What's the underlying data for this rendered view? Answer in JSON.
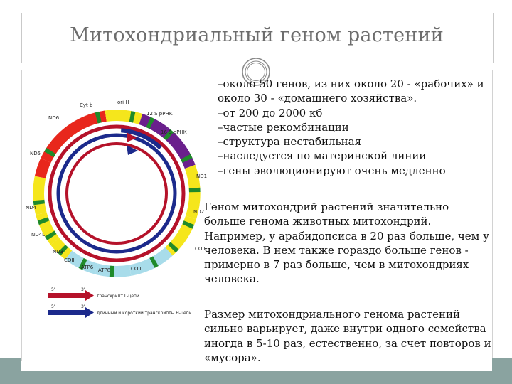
{
  "slide": {
    "title": "Митохондриальный геном растений",
    "bullets": [
      "–около 50 генов, из них около 20 - «рабочих» и",
      "около 30 - «домашнего хозяйства».",
      "–от 200 до 2000 кб",
      "–частые рекомбинации",
      "–структура нестабильная",
      "–наследуется по материнской линии",
      "–гены эволюционируют очень медленно"
    ],
    "paragraph1": [
      "Геном митохондрий растений значительно",
      "больше генома животных митохондрий.",
      "Например, у арабидопсиса в 20 раз больше, чем у",
      "человека. В нем также гораздо больше генов -",
      "примерно в 7 раз больше, чем в митохондриях",
      "человека."
    ],
    "paragraph2": [
      "Размер митохондриального генома растений",
      "сильно варьирует, даже внутри одного семейства",
      "иногда в 5-10 раз, естественно, за счет повторов и",
      "«мусора»."
    ]
  },
  "diagram": {
    "gene_labels": {
      "cytb": "Cyt b",
      "orih": "ori H",
      "rrna12": "12 S рРНК",
      "rrna16": "16 S рРНК",
      "nd1": "ND1",
      "nd2": "ND2",
      "co1": "CO I",
      "co2": "CO I",
      "atp8": "ATP8",
      "atp6": "ATP6",
      "co3": "COIII",
      "nd3": "ND3",
      "nd4l": "ND4L",
      "nd4": "ND4",
      "nd5": "ND5",
      "nd6": "ND6"
    },
    "legend": {
      "red_label": "транскрипт L-цепи",
      "blue_label": "длинный и короткий транскрипты H-цепи",
      "five_prime": "5'",
      "three_prime": "3'"
    },
    "colors": {
      "red": "#e8271c",
      "purple": "#6a1f8c",
      "yellow": "#f5e61c",
      "lightblue": "#a8dcea",
      "green": "#1f8a2a",
      "darkred": "#b5122a",
      "navy": "#1c2a8c"
    }
  }
}
